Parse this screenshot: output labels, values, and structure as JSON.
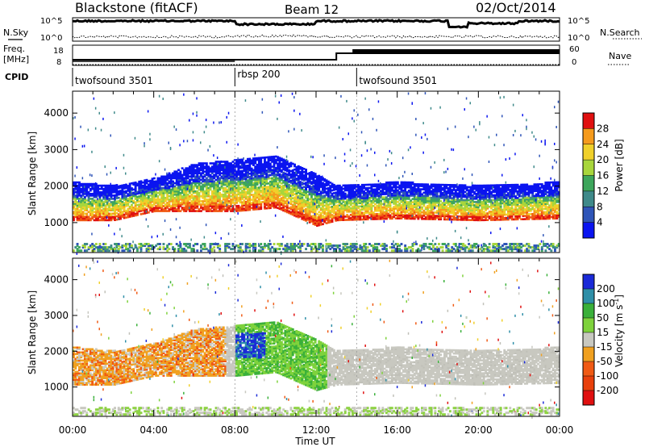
{
  "header": {
    "station": "Blackstone (fitACF)",
    "beam": "Beam 12",
    "date": "02/Oct/2014"
  },
  "summary_panel": {
    "left_label_top": "N.Sky",
    "left_label_freq_1": "Freq.",
    "left_label_freq_2": "[MHz]",
    "left_label_cpid": "CPID",
    "right_label_top": "N.Search",
    "right_label_nave": "Nave",
    "noise_ticks": [
      "10^5",
      "10^0"
    ],
    "freq_ticks": [
      "18",
      "8"
    ],
    "nave_ticks": [
      "60",
      "0"
    ],
    "cpid_segments": [
      {
        "label": "twofsound 3501",
        "start_hour": 0,
        "end_hour": 8
      },
      {
        "label": "rbsp 200",
        "start_hour": 8,
        "end_hour": 14
      },
      {
        "label": "twofsound 3501",
        "start_hour": 14,
        "end_hour": 24
      }
    ],
    "nave_step_hour": 13,
    "nave_low": 12,
    "nave_high": 48
  },
  "colors": {
    "power_scale": [
      "#0a14f0",
      "#2f55b8",
      "#3f8a8a",
      "#3da65c",
      "#a8d63c",
      "#f0d02a",
      "#f59a1c",
      "#f05a14",
      "#e01010"
    ],
    "velocity_scale": [
      "#e01010",
      "#f05a14",
      "#f0a020",
      "#f0d02a",
      "#c8c8c0",
      "#c0c0b8",
      "#7ed23c",
      "#3ab03a",
      "#2f8fa8",
      "#1a2ad8"
    ]
  },
  "chart_data": [
    {
      "type": "heatmap",
      "title": "",
      "xlabel": "Time UT",
      "ylabel": "Slant Range [km]",
      "x_ticks": [
        "00:00",
        "04:00",
        "08:00",
        "12:00",
        "16:00",
        "20:00",
        "00:00"
      ],
      "y_ticks": [
        "1000",
        "2000",
        "3000",
        "4000"
      ],
      "xlim_hours": [
        0,
        24
      ],
      "ylim_km": [
        180,
        4600
      ],
      "colorbar": {
        "label": "Power [dB]",
        "ticks": [
          "4",
          "8",
          "12",
          "16",
          "20",
          "24",
          "28"
        ],
        "range": [
          0,
          30
        ]
      },
      "dominant_echo_band_km": [
        {
          "hour": 0,
          "low": 1050,
          "high": 2100
        },
        {
          "hour": 2,
          "low": 1050,
          "high": 2000
        },
        {
          "hour": 4,
          "low": 1300,
          "high": 2200
        },
        {
          "hour": 6,
          "low": 1300,
          "high": 2600
        },
        {
          "hour": 8,
          "low": 1300,
          "high": 2700
        },
        {
          "hour": 10,
          "low": 1400,
          "high": 2800
        },
        {
          "hour": 12,
          "low": 900,
          "high": 2300
        },
        {
          "hour": 13,
          "low": 1050,
          "high": 2000
        },
        {
          "hour": 16,
          "low": 1100,
          "high": 2100
        },
        {
          "hour": 20,
          "low": 1050,
          "high": 2000
        },
        {
          "hour": 24,
          "low": 1100,
          "high": 2100
        }
      ]
    },
    {
      "type": "heatmap",
      "title": "",
      "xlabel": "Time UT",
      "ylabel": "Slant Range [km]",
      "x_ticks": [
        "00:00",
        "04:00",
        "08:00",
        "12:00",
        "16:00",
        "20:00",
        "00:00"
      ],
      "y_ticks": [
        "1000",
        "2000",
        "3000",
        "4000"
      ],
      "xlim_hours": [
        0,
        24
      ],
      "ylim_km": [
        180,
        4600
      ],
      "colorbar": {
        "label": "Velocity [m s",
        "label_exp": "-1",
        "label_end": "]",
        "ticks": [
          "200",
          "100",
          "50",
          "15",
          "-15",
          "-50",
          "-100",
          "-200"
        ],
        "range": [
          -250,
          250
        ]
      }
    }
  ]
}
